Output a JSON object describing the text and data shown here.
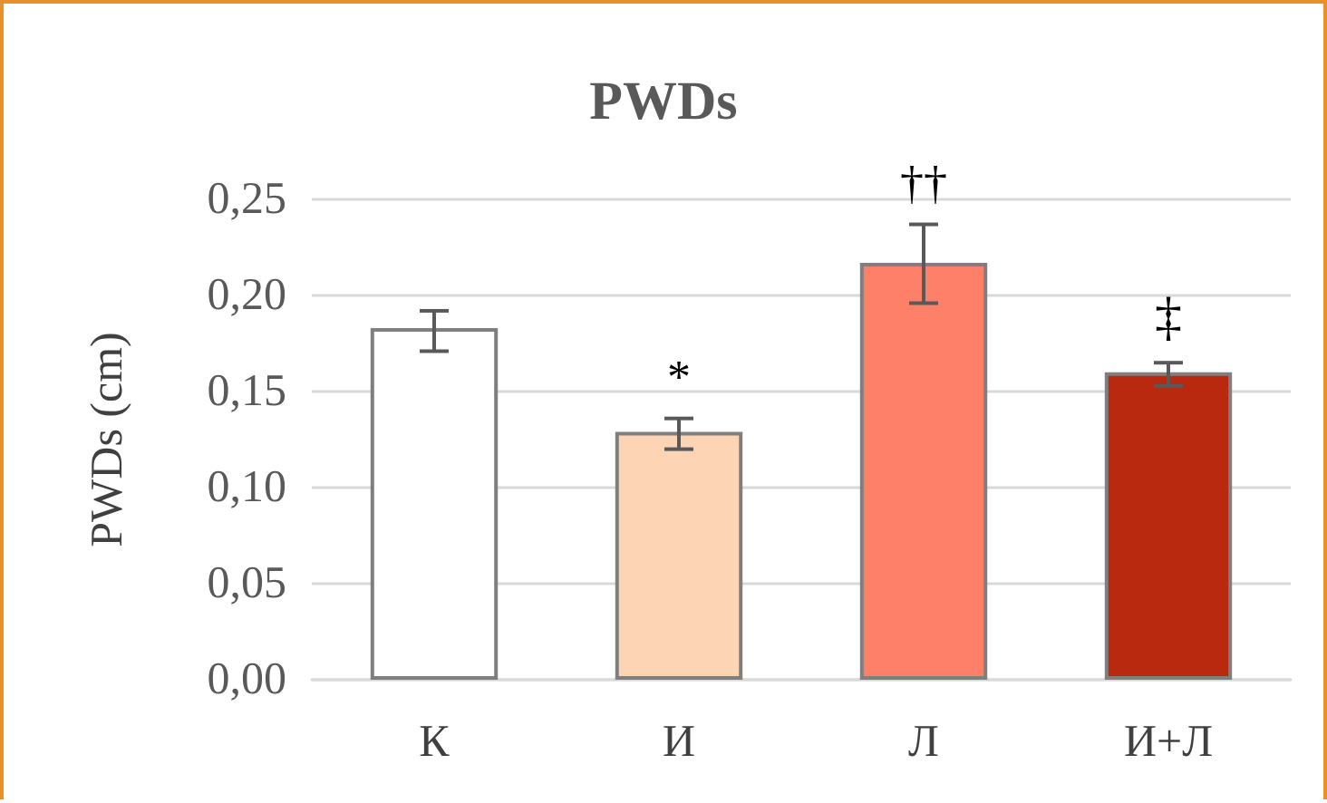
{
  "chart_data": {
    "type": "bar",
    "title": "PWDs",
    "ylabel": "PWDs (cm)",
    "categories": [
      "К",
      "И",
      "Л",
      "И+Л"
    ],
    "values": [
      0.183,
      0.129,
      0.217,
      0.16
    ],
    "colors": [
      "#ffffff",
      "#fdd5b5",
      "#fe8068",
      "#b8290f"
    ],
    "errors": [
      [
        0.171,
        0.192
      ],
      [
        0.12,
        0.136
      ],
      [
        0.196,
        0.237
      ],
      [
        0.153,
        0.165
      ]
    ],
    "annotations": [
      {
        "text": "*",
        "x": "И",
        "y": 0.136
      },
      {
        "text": "††",
        "x": "Л",
        "y": 0.237
      },
      {
        "text": "‡",
        "x": "И+Л",
        "y": 0.165
      }
    ],
    "ylim": [
      0,
      0.25
    ],
    "yticks": [
      {
        "value": 0,
        "label": "0,00"
      },
      {
        "value": 0.05,
        "label": "0,05"
      },
      {
        "value": 0.1,
        "label": "0,10"
      },
      {
        "value": 0.15,
        "label": "0,15"
      },
      {
        "value": 0.2,
        "label": "0,20"
      },
      {
        "value": 0.25,
        "label": "0,25"
      }
    ],
    "grid": "y"
  }
}
